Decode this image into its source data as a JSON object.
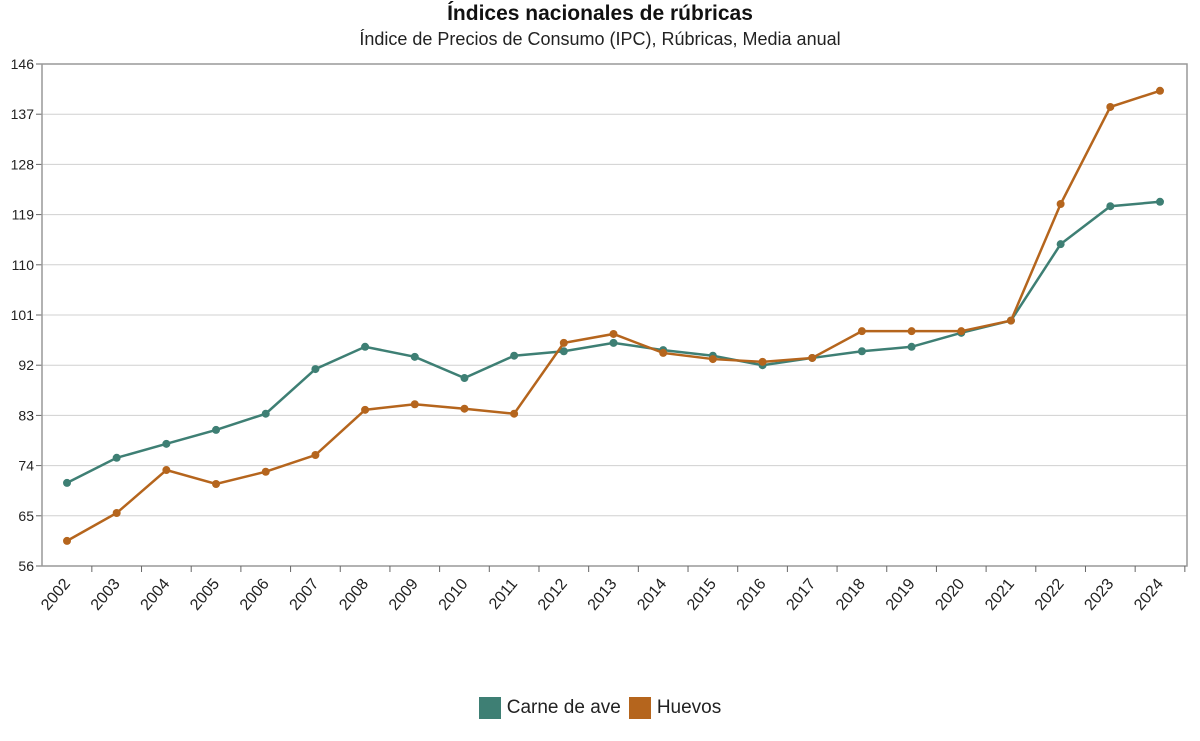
{
  "chart_data": {
    "type": "line",
    "title": "Índices nacionales de rúbricas",
    "subtitle": "Índice de Precios de Consumo (IPC), Rúbricas, Media anual",
    "xlabel": "",
    "ylabel": "",
    "ylim": [
      56,
      146
    ],
    "yticks": [
      56,
      65,
      74,
      83,
      92,
      101,
      110,
      119,
      128,
      137,
      146
    ],
    "grid": true,
    "legend_position": "bottom",
    "categories": [
      "2002",
      "2003",
      "2004",
      "2005",
      "2006",
      "2007",
      "2008",
      "2009",
      "2010",
      "2011",
      "2012",
      "2013",
      "2014",
      "2015",
      "2016",
      "2017",
      "2018",
      "2019",
      "2020",
      "2021",
      "2022",
      "2023",
      "2024"
    ],
    "series": [
      {
        "name": "Carne de ave",
        "color": "#3e7f74",
        "values": [
          70.9,
          75.4,
          77.9,
          80.4,
          83.3,
          91.3,
          95.3,
          93.5,
          89.7,
          93.7,
          94.5,
          96.0,
          94.7,
          93.7,
          92.0,
          93.3,
          94.5,
          95.3,
          97.8,
          100.0,
          113.7,
          120.5,
          121.3
        ]
      },
      {
        "name": "Huevos",
        "color": "#b5651d",
        "values": [
          60.5,
          65.5,
          73.2,
          70.7,
          72.9,
          75.9,
          84.0,
          85.0,
          84.2,
          83.3,
          96.0,
          97.6,
          94.2,
          93.1,
          92.6,
          93.3,
          98.1,
          98.1,
          98.1,
          100.0,
          120.9,
          138.3,
          141.2
        ]
      }
    ]
  }
}
